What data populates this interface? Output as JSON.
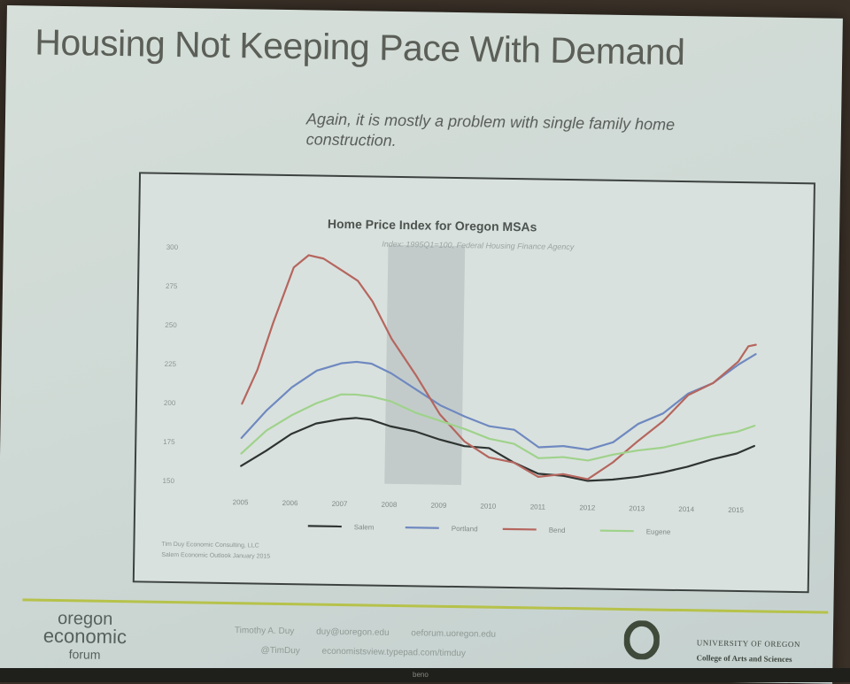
{
  "slide": {
    "title": "Housing Not Keeping Pace With Demand",
    "subtitle": "Again, it is mostly a problem with single family home construction."
  },
  "chart_data": {
    "type": "line",
    "title": "Home Price Index for Oregon MSAs",
    "subtitle": "Index: 1995Q1=100, Federal Housing Finance Agency",
    "ylim": [
      150,
      300
    ],
    "y_ticks": [
      "150",
      "175",
      "200",
      "225",
      "250",
      "275",
      "300"
    ],
    "x_ticks": [
      "2005",
      "2006",
      "2007",
      "2008",
      "2009",
      "2010",
      "2011",
      "2012",
      "2013",
      "2014",
      "2015"
    ],
    "recession_shade": [
      2007.9,
      2009.45
    ],
    "legend_position": "bottom",
    "series": [
      {
        "name": "Salem",
        "color": "#2e3431",
        "x": [
          2005.0,
          2005.5,
          2006.0,
          2006.5,
          2007.0,
          2007.3,
          2007.6,
          2008.0,
          2008.5,
          2009.0,
          2009.5,
          2010.0,
          2010.5,
          2011.0,
          2011.5,
          2012.0,
          2012.5,
          2013.0,
          2013.5,
          2014.0,
          2014.5,
          2015.0,
          2015.35
        ],
        "y": [
          160,
          170,
          181,
          188,
          191,
          192,
          191,
          187,
          184,
          179,
          175,
          174,
          165,
          158,
          157,
          154,
          155,
          157,
          160,
          164,
          169,
          173,
          178
        ]
      },
      {
        "name": "Portland",
        "color": "#6f89c0",
        "x": [
          2005.0,
          2005.5,
          2006.0,
          2006.5,
          2007.0,
          2007.3,
          2007.6,
          2008.0,
          2008.5,
          2009.0,
          2009.5,
          2010.0,
          2010.5,
          2011.0,
          2011.5,
          2012.0,
          2012.5,
          2013.0,
          2013.5,
          2014.0,
          2014.5,
          2015.0,
          2015.35
        ],
        "y": [
          178,
          196,
          211,
          222,
          227,
          228,
          227,
          221,
          211,
          201,
          194,
          188,
          186,
          175,
          176,
          174,
          179,
          191,
          198,
          211,
          218,
          230,
          237
        ]
      },
      {
        "name": "Bend",
        "color": "#b5665e",
        "x": [
          2005.0,
          2005.3,
          2005.6,
          2006.0,
          2006.3,
          2006.6,
          2007.0,
          2007.3,
          2007.6,
          2008.0,
          2008.5,
          2009.0,
          2009.5,
          2010.0,
          2010.5,
          2011.0,
          2011.5,
          2012.0,
          2012.5,
          2013.0,
          2013.5,
          2014.0,
          2014.5,
          2015.0,
          2015.2,
          2015.35
        ],
        "y": [
          200,
          222,
          252,
          288,
          296,
          294,
          286,
          280,
          267,
          243,
          220,
          195,
          178,
          168,
          165,
          156,
          158,
          155,
          166,
          180,
          193,
          210,
          218,
          232,
          242,
          243
        ]
      },
      {
        "name": "Eugene",
        "color": "#9fd28b",
        "x": [
          2005.0,
          2005.5,
          2006.0,
          2006.5,
          2007.0,
          2007.3,
          2007.6,
          2008.0,
          2008.5,
          2009.0,
          2009.5,
          2010.0,
          2010.5,
          2011.0,
          2011.5,
          2012.0,
          2012.5,
          2013.0,
          2013.5,
          2014.0,
          2014.5,
          2015.0,
          2015.35
        ],
        "y": [
          168,
          183,
          193,
          201,
          207,
          207,
          206,
          203,
          196,
          191,
          186,
          180,
          177,
          168,
          169,
          167,
          171,
          174,
          176,
          180,
          184,
          187,
          191
        ]
      }
    ],
    "source_lines": [
      "Tim Duy Economic Consulting, LLC",
      "Salem Economic Outlook January 2015"
    ]
  },
  "footer": {
    "logo_line1": "oregon",
    "logo_line2": "economic",
    "logo_line3": "forum",
    "contact_name": "Timothy A. Duy",
    "contact_email": "duy@uoregon.edu",
    "contact_web": "oeforum.uoregon.edu",
    "contact_twitter": "@TimDuy",
    "contact_blog": "economistsview.typepad.com/timduy",
    "university_name": "UNIVERSITY OF OREGON",
    "college_name": "College of Arts and Sciences",
    "projector_label": "beno"
  },
  "colors": {
    "slide_bg": "#d3dcd8",
    "footer_rule": "#b6c24a",
    "uo_green": "#3f4a3b"
  }
}
